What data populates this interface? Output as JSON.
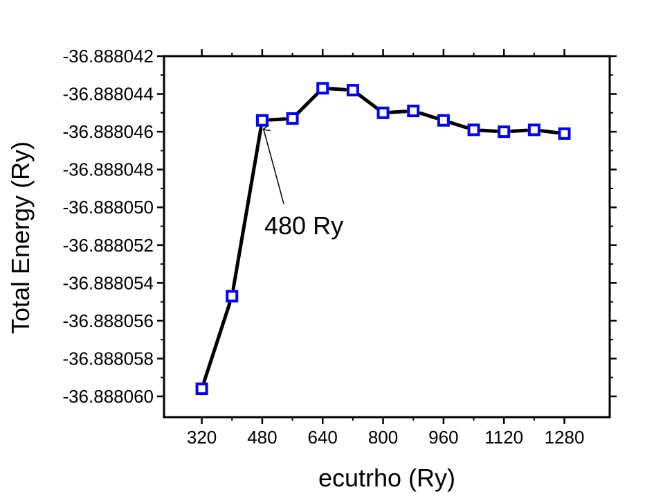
{
  "chart_data": {
    "type": "line",
    "title": "",
    "xlabel": "ecutrho (Ry)",
    "ylabel": "Total Energy (Ry)",
    "xlim": [
      220,
      1400
    ],
    "ylim": [
      -36.8880611,
      -36.888042
    ],
    "xticks": [
      320,
      480,
      640,
      800,
      960,
      1120,
      1280
    ],
    "xtick_labels": [
      "320",
      "480",
      "640",
      "800",
      "960",
      "1120",
      "1280"
    ],
    "yticks": [
      -36.888042,
      -36.888044,
      -36.888046,
      -36.888048,
      -36.88805,
      -36.888052,
      -36.888054,
      -36.888056,
      -36.888058,
      -36.88806
    ],
    "ytick_labels": [
      "-36.888042",
      "-36.888044",
      "-36.888046",
      "-36.888048",
      "-36.888050",
      "-36.888052",
      "-36.888054",
      "-36.888056",
      "-36.888058",
      "-36.888060"
    ],
    "grid": false,
    "series": [
      {
        "x": [
          320,
          400,
          480,
          560,
          640,
          720,
          800,
          880,
          960,
          1040,
          1120,
          1200,
          1280
        ],
        "y": [
          -36.8880596,
          -36.8880547,
          -36.8880454,
          -36.8880453,
          -36.8880437,
          -36.8880438,
          -36.888045,
          -36.8880449,
          -36.8880454,
          -36.8880459,
          -36.888046,
          -36.8880459,
          -36.8880461
        ],
        "line_color": "#000000",
        "marker": "square",
        "marker_color": "#0000ff"
      }
    ],
    "annotation": {
      "text": "480 Ry",
      "target_x": 480,
      "target_y": -36.8880454
    }
  }
}
